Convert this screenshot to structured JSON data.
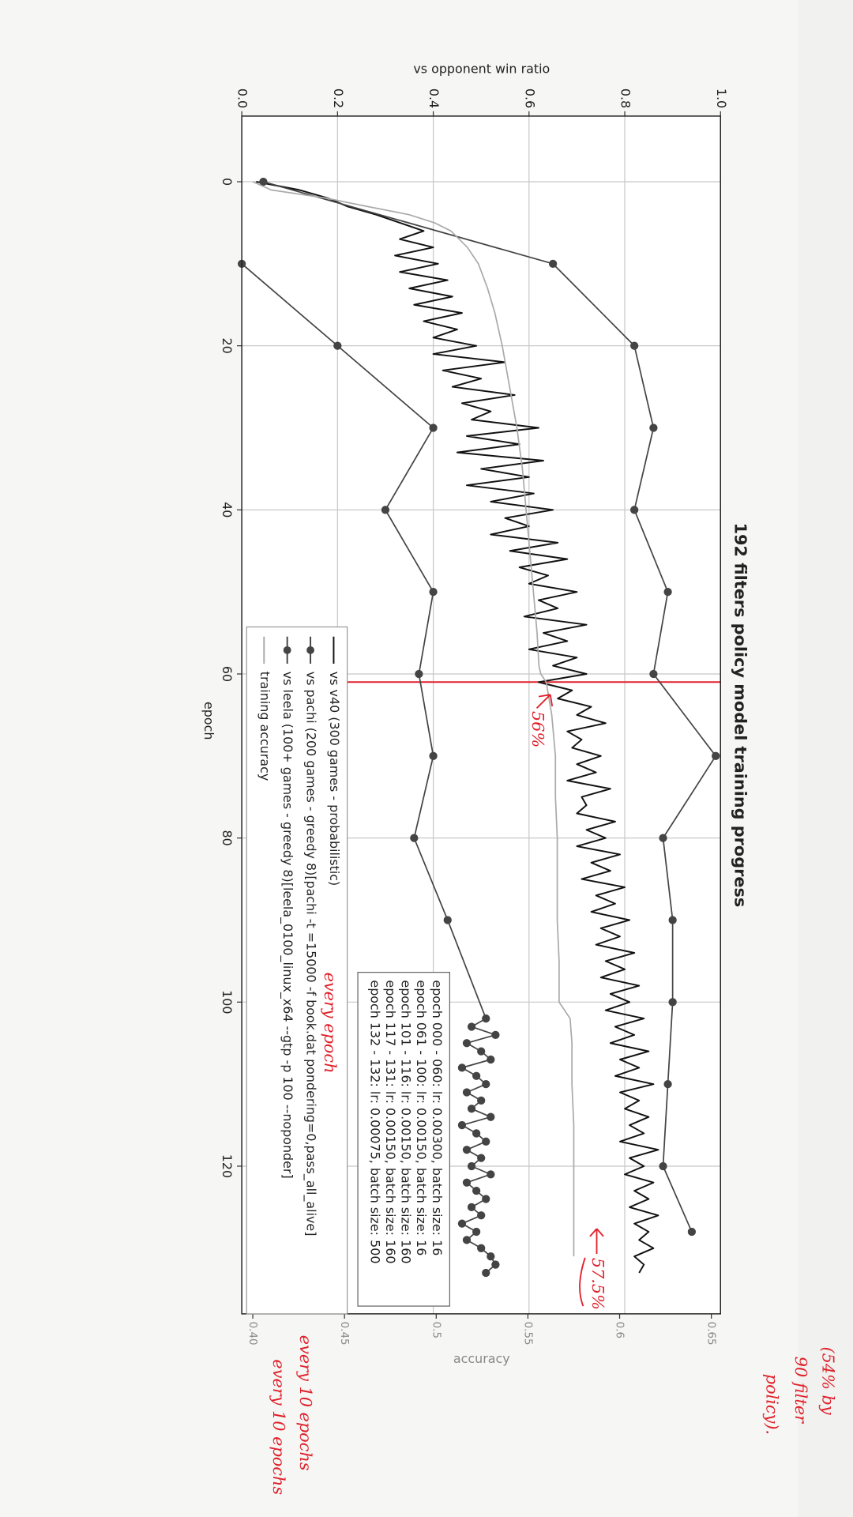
{
  "chart_data": {
    "type": "line",
    "title": "192 filters policy model training progress",
    "x_label": "epoch",
    "y_label": "vs opponent win ratio",
    "y2_label": "accuracy",
    "xlim": [
      -8,
      138
    ],
    "xticks": [
      0,
      20,
      40,
      60,
      80,
      100,
      120
    ],
    "ylim": [
      0,
      1
    ],
    "yticks": [
      {
        "value": 0,
        "label": "0.0"
      },
      {
        "value": 0.2,
        "label": "0.2"
      },
      {
        "value": 0.4,
        "label": "0.4"
      },
      {
        "value": 0.6,
        "label": "0.6"
      },
      {
        "value": 0.8,
        "label": "0.8"
      },
      {
        "value": 1,
        "label": "1.0"
      }
    ],
    "y2lim": [
      0.394,
      0.655
    ],
    "y2ticks": [
      {
        "value": 0.4,
        "label": "0.40"
      },
      0.45,
      0.5,
      0.55,
      0.6,
      0.65
    ],
    "grid": true,
    "series": [
      {
        "name": "vs v40 (300 games - probabilistic)",
        "color": "#111111",
        "x": [
          0,
          1,
          2,
          3,
          4,
          5,
          6,
          7,
          8,
          9,
          10,
          11,
          12,
          13,
          14,
          15,
          16,
          17,
          18,
          19,
          20,
          21,
          22,
          23,
          24,
          25,
          26,
          27,
          28,
          29,
          30,
          31,
          32,
          33,
          34,
          35,
          36,
          37,
          38,
          39,
          40,
          41,
          42,
          43,
          44,
          45,
          46,
          47,
          48,
          49,
          50,
          51,
          52,
          53,
          54,
          55,
          56,
          57,
          58,
          59,
          60,
          61,
          62,
          63,
          64,
          65,
          66,
          67,
          68,
          69,
          70,
          71,
          72,
          73,
          74,
          75,
          76,
          77,
          78,
          79,
          80,
          81,
          82,
          83,
          84,
          85,
          86,
          87,
          88,
          89,
          90,
          91,
          92,
          93,
          94,
          95,
          96,
          97,
          98,
          99,
          100,
          101,
          102,
          103,
          104,
          105,
          106,
          107,
          108,
          109,
          110,
          111,
          112,
          113,
          114,
          115,
          116,
          117,
          118,
          119,
          120,
          121,
          122,
          123,
          124,
          125,
          126,
          127,
          128,
          129,
          130,
          131,
          132,
          133
        ],
        "values": [
          0.03,
          0.12,
          0.18,
          0.22,
          0.28,
          0.33,
          0.38,
          0.33,
          0.4,
          0.32,
          0.41,
          0.33,
          0.43,
          0.35,
          0.44,
          0.36,
          0.46,
          0.38,
          0.45,
          0.4,
          0.49,
          0.4,
          0.55,
          0.42,
          0.5,
          0.44,
          0.57,
          0.46,
          0.52,
          0.48,
          0.62,
          0.47,
          0.58,
          0.45,
          0.63,
          0.5,
          0.6,
          0.47,
          0.61,
          0.52,
          0.65,
          0.55,
          0.6,
          0.52,
          0.66,
          0.56,
          0.68,
          0.58,
          0.64,
          0.6,
          0.7,
          0.62,
          0.66,
          0.59,
          0.72,
          0.63,
          0.68,
          0.6,
          0.7,
          0.65,
          0.72,
          0.62,
          0.69,
          0.66,
          0.73,
          0.7,
          0.76,
          0.68,
          0.71,
          0.69,
          0.75,
          0.7,
          0.74,
          0.68,
          0.77,
          0.71,
          0.72,
          0.7,
          0.78,
          0.72,
          0.76,
          0.7,
          0.79,
          0.73,
          0.77,
          0.71,
          0.8,
          0.74,
          0.78,
          0.73,
          0.81,
          0.75,
          0.79,
          0.74,
          0.82,
          0.76,
          0.8,
          0.75,
          0.83,
          0.77,
          0.81,
          0.76,
          0.84,
          0.78,
          0.82,
          0.77,
          0.85,
          0.79,
          0.83,
          0.78,
          0.86,
          0.79,
          0.83,
          0.8,
          0.85,
          0.81,
          0.84,
          0.79,
          0.87,
          0.81,
          0.84,
          0.8,
          0.86,
          0.82,
          0.85,
          0.81,
          0.87,
          0.82,
          0.85,
          0.83,
          0.86,
          0.82,
          0.84,
          0.83
        ]
      },
      {
        "name": "vs pachi (200 games - greedy 8)[pachi -t =15000 -f book.dat pondering=0,pass_all_alive]",
        "color": "#444444",
        "marker": "o",
        "x": [
          0,
          10,
          20,
          30,
          40,
          50,
          60,
          70,
          80,
          90,
          100,
          110,
          120,
          128
        ],
        "values": [
          0.045,
          0.65,
          0.82,
          0.86,
          0.82,
          0.89,
          0.86,
          0.99,
          0.88,
          0.9,
          0.9,
          0.89,
          0.88,
          0.94
        ]
      },
      {
        "name": "vs leela (100+ games - greedy 8)[leela_0100_linux_x64 --gtp -p 100 --noponder]",
        "color": "#444444",
        "marker": "o",
        "x": [
          10,
          20,
          30,
          40,
          50,
          60,
          70,
          80,
          90,
          102,
          103,
          104,
          105,
          106,
          107,
          108,
          109,
          110,
          111,
          112,
          113,
          114,
          115,
          116,
          117,
          118,
          119,
          120,
          121,
          122,
          123,
          124,
          125,
          126,
          127,
          128,
          129,
          130,
          131,
          132,
          133
        ],
        "values": [
          0,
          0.2,
          0.4,
          0.3,
          0.4,
          0.37,
          0.4,
          0.36,
          0.43,
          0.51,
          0.48,
          0.53,
          0.47,
          0.5,
          0.52,
          0.46,
          0.49,
          0.51,
          0.47,
          0.5,
          0.48,
          0.52,
          0.46,
          0.49,
          0.51,
          0.47,
          0.5,
          0.48,
          0.52,
          0.47,
          0.49,
          0.51,
          0.48,
          0.5,
          0.46,
          0.49,
          0.47,
          0.5,
          0.52,
          0.53,
          0.51
        ]
      },
      {
        "name": "training accuracy",
        "color": "#aaaaaa",
        "axis": "y2",
        "x": [
          0,
          1,
          2,
          3,
          4,
          5,
          6,
          8,
          10,
          13,
          16,
          20,
          25,
          30,
          35,
          40,
          45,
          50,
          55,
          59,
          60,
          61,
          65,
          70,
          75,
          80,
          85,
          90,
          95,
          100,
          101,
          102,
          105,
          110,
          115,
          120,
          125,
          131
        ],
        "values": [
          0.4,
          0.41,
          0.44,
          0.462,
          0.485,
          0.499,
          0.508,
          0.517,
          0.523,
          0.528,
          0.532,
          0.536,
          0.54,
          0.544,
          0.547,
          0.549,
          0.551,
          0.553,
          0.555,
          0.556,
          0.557,
          0.56,
          0.563,
          0.565,
          0.565,
          0.566,
          0.566,
          0.566,
          0.567,
          0.567,
          0.57,
          0.573,
          0.574,
          0.574,
          0.575,
          0.575,
          0.575,
          0.575
        ]
      }
    ],
    "lr_schedule": [
      "epoch 000 - 060: lr: 0.00300, batch size: 16",
      "epoch 061 - 100: lr: 0.00150, batch size: 16",
      "epoch 101 - 116: lr: 0.00150, batch size: 160",
      "epoch 117 - 131: lr: 0.00150, batch size: 160",
      "epoch 132 - 132: lr: 0.00075, batch size: 500"
    ],
    "annotation_color": "#e0202a",
    "annotations": [
      "56%",
      "57.5%",
      "(54% by",
      "90 filter",
      "policy).",
      "every epoch",
      "every 10 epochs",
      "every 10 epochs"
    ]
  }
}
